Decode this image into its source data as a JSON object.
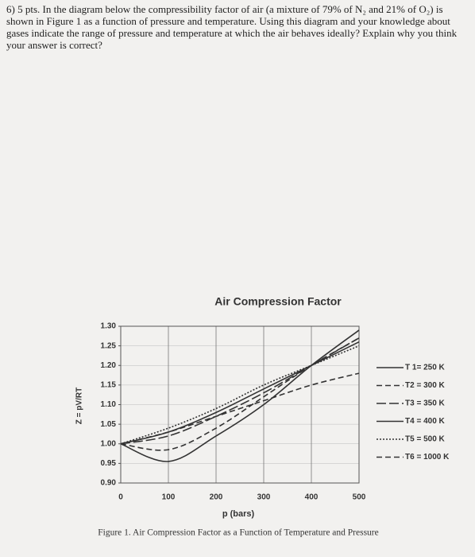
{
  "question": {
    "text": "6) 5 pts. In the diagram below the compressibility factor of air (a mixture of 79% of N₂ and 21% of O₂) is shown in Figure 1 as a function of pressure and temperature. Using this diagram and your knowledge about gases indicate the range of pressure and temperature at which the air behaves ideally? Explain why you think your answer is correct?"
  },
  "chart_data": {
    "type": "line",
    "title": "Air Compression Factor",
    "x_label": "p (bars)",
    "y_label": "Z = pV/RT",
    "caption": "Figure 1. Air Compression Factor as a Function of Temperature and Pressure",
    "x": [
      0,
      100,
      200,
      300,
      400,
      500
    ],
    "series": [
      {
        "name": "T 1= 250 K",
        "color": "#333333",
        "dash": "solid",
        "values": [
          1.0,
          0.955,
          1.02,
          1.1,
          1.2,
          1.29
        ]
      },
      {
        "name": "T2 = 300 K",
        "color": "#333333",
        "dash": "dashed",
        "values": [
          1.0,
          0.985,
          1.04,
          1.12,
          1.2,
          1.27
        ]
      },
      {
        "name": "T3 = 350 K",
        "color": "#333333",
        "dash": "longdash",
        "values": [
          1.0,
          1.02,
          1.07,
          1.13,
          1.2,
          1.27
        ]
      },
      {
        "name": "T4 = 400 K",
        "color": "#333333",
        "dash": "solid",
        "values": [
          1.0,
          1.03,
          1.08,
          1.14,
          1.2,
          1.26
        ]
      },
      {
        "name": "T5 = 500 K",
        "color": "#333333",
        "dash": "dotted",
        "values": [
          1.0,
          1.04,
          1.09,
          1.15,
          1.2,
          1.25
        ]
      },
      {
        "name": "T6 = 1000 K",
        "color": "#333333",
        "dash": "dashed",
        "values": [
          1.0,
          1.03,
          1.07,
          1.11,
          1.15,
          1.18
        ]
      }
    ],
    "xlim": [
      0,
      500
    ],
    "xticks": [
      0,
      100,
      200,
      300,
      400,
      500
    ],
    "ylim": [
      0.9,
      1.3
    ],
    "yticks": [
      {
        "value": 1.3,
        "label": "1.30"
      },
      1.25,
      {
        "value": 1.2,
        "label": "1.20"
      },
      1.15,
      {
        "value": 1.1,
        "label": "1.10"
      },
      1.05,
      {
        "value": 1.0,
        "label": "1.00"
      },
      0.95,
      {
        "value": 0.9,
        "label": "0.90"
      }
    ],
    "grid": true
  }
}
